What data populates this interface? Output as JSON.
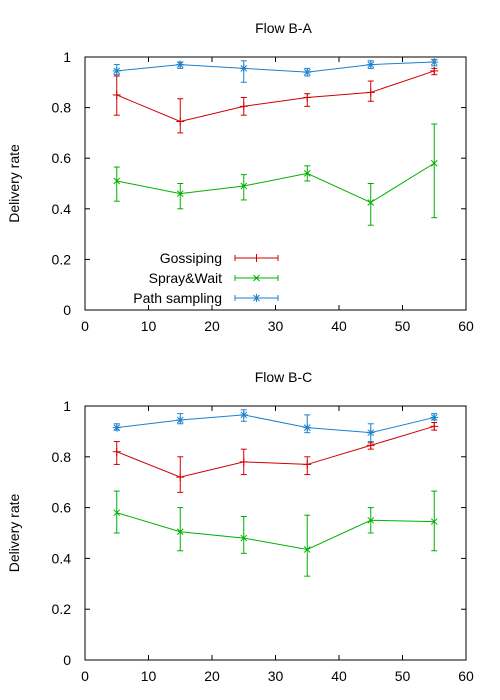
{
  "chart_data": [
    {
      "type": "line",
      "title": "Flow B-A",
      "xlabel": "",
      "ylabel": "Delivery rate",
      "xlim": [
        0,
        60
      ],
      "ylim": [
        0,
        1
      ],
      "xticks": [
        "0",
        "10",
        "20",
        "30",
        "40",
        "50",
        "60"
      ],
      "yticks": [
        "0",
        "0.2",
        "0.4",
        "0.6",
        "0.8",
        "1"
      ],
      "x": [
        5,
        15,
        25,
        35,
        45,
        55
      ],
      "legend_position": "bottom-left",
      "grid": false,
      "error_bars": true,
      "series": [
        {
          "name": "Gossiping",
          "color": "#d00000",
          "marker": "plus",
          "values": [
            0.85,
            0.745,
            0.805,
            0.84,
            0.86,
            0.945
          ],
          "err_low": [
            0.77,
            0.7,
            0.77,
            0.805,
            0.825,
            0.93
          ],
          "err_high": [
            0.925,
            0.835,
            0.84,
            0.855,
            0.905,
            0.955
          ]
        },
        {
          "name": "Spray&Wait",
          "color": "#00b000",
          "marker": "cross",
          "values": [
            0.51,
            0.46,
            0.49,
            0.54,
            0.425,
            0.58
          ],
          "err_low": [
            0.43,
            0.4,
            0.435,
            0.51,
            0.335,
            0.365
          ],
          "err_high": [
            0.565,
            0.5,
            0.535,
            0.57,
            0.5,
            0.735
          ]
        },
        {
          "name": "Path sampling",
          "color": "#1a80d0",
          "marker": "star",
          "values": [
            0.945,
            0.97,
            0.955,
            0.94,
            0.97,
            0.98
          ],
          "err_low": [
            0.93,
            0.955,
            0.9,
            0.925,
            0.955,
            0.965
          ],
          "err_high": [
            0.97,
            0.98,
            0.985,
            0.955,
            0.985,
            0.99
          ]
        }
      ]
    },
    {
      "type": "line",
      "title": "Flow B-C",
      "xlabel": "",
      "ylabel": "Delivery rate",
      "xlim": [
        0,
        60
      ],
      "ylim": [
        0,
        1
      ],
      "xticks": [
        "0",
        "10",
        "20",
        "30",
        "40",
        "50",
        "60"
      ],
      "yticks": [
        "0",
        "0.2",
        "0.4",
        "0.6",
        "0.8",
        "1"
      ],
      "x": [
        5,
        15,
        25,
        35,
        45,
        55
      ],
      "grid": false,
      "error_bars": true,
      "series": [
        {
          "color": "#d00000",
          "marker": "plus",
          "values": [
            0.82,
            0.72,
            0.78,
            0.77,
            0.845,
            0.92
          ],
          "err_low": [
            0.77,
            0.66,
            0.73,
            0.73,
            0.83,
            0.905
          ],
          "err_high": [
            0.86,
            0.8,
            0.83,
            0.8,
            0.855,
            0.935
          ]
        },
        {
          "color": "#00b000",
          "marker": "cross",
          "values": [
            0.58,
            0.505,
            0.48,
            0.435,
            0.55,
            0.545
          ],
          "err_low": [
            0.5,
            0.43,
            0.42,
            0.33,
            0.5,
            0.43
          ],
          "err_high": [
            0.665,
            0.6,
            0.565,
            0.57,
            0.6,
            0.665
          ]
        },
        {
          "color": "#1a80d0",
          "marker": "star",
          "values": [
            0.915,
            0.945,
            0.965,
            0.915,
            0.895,
            0.955
          ],
          "err_low": [
            0.905,
            0.93,
            0.94,
            0.895,
            0.86,
            0.945
          ],
          "err_high": [
            0.93,
            0.97,
            0.985,
            0.965,
            0.93,
            0.97
          ]
        }
      ]
    }
  ]
}
